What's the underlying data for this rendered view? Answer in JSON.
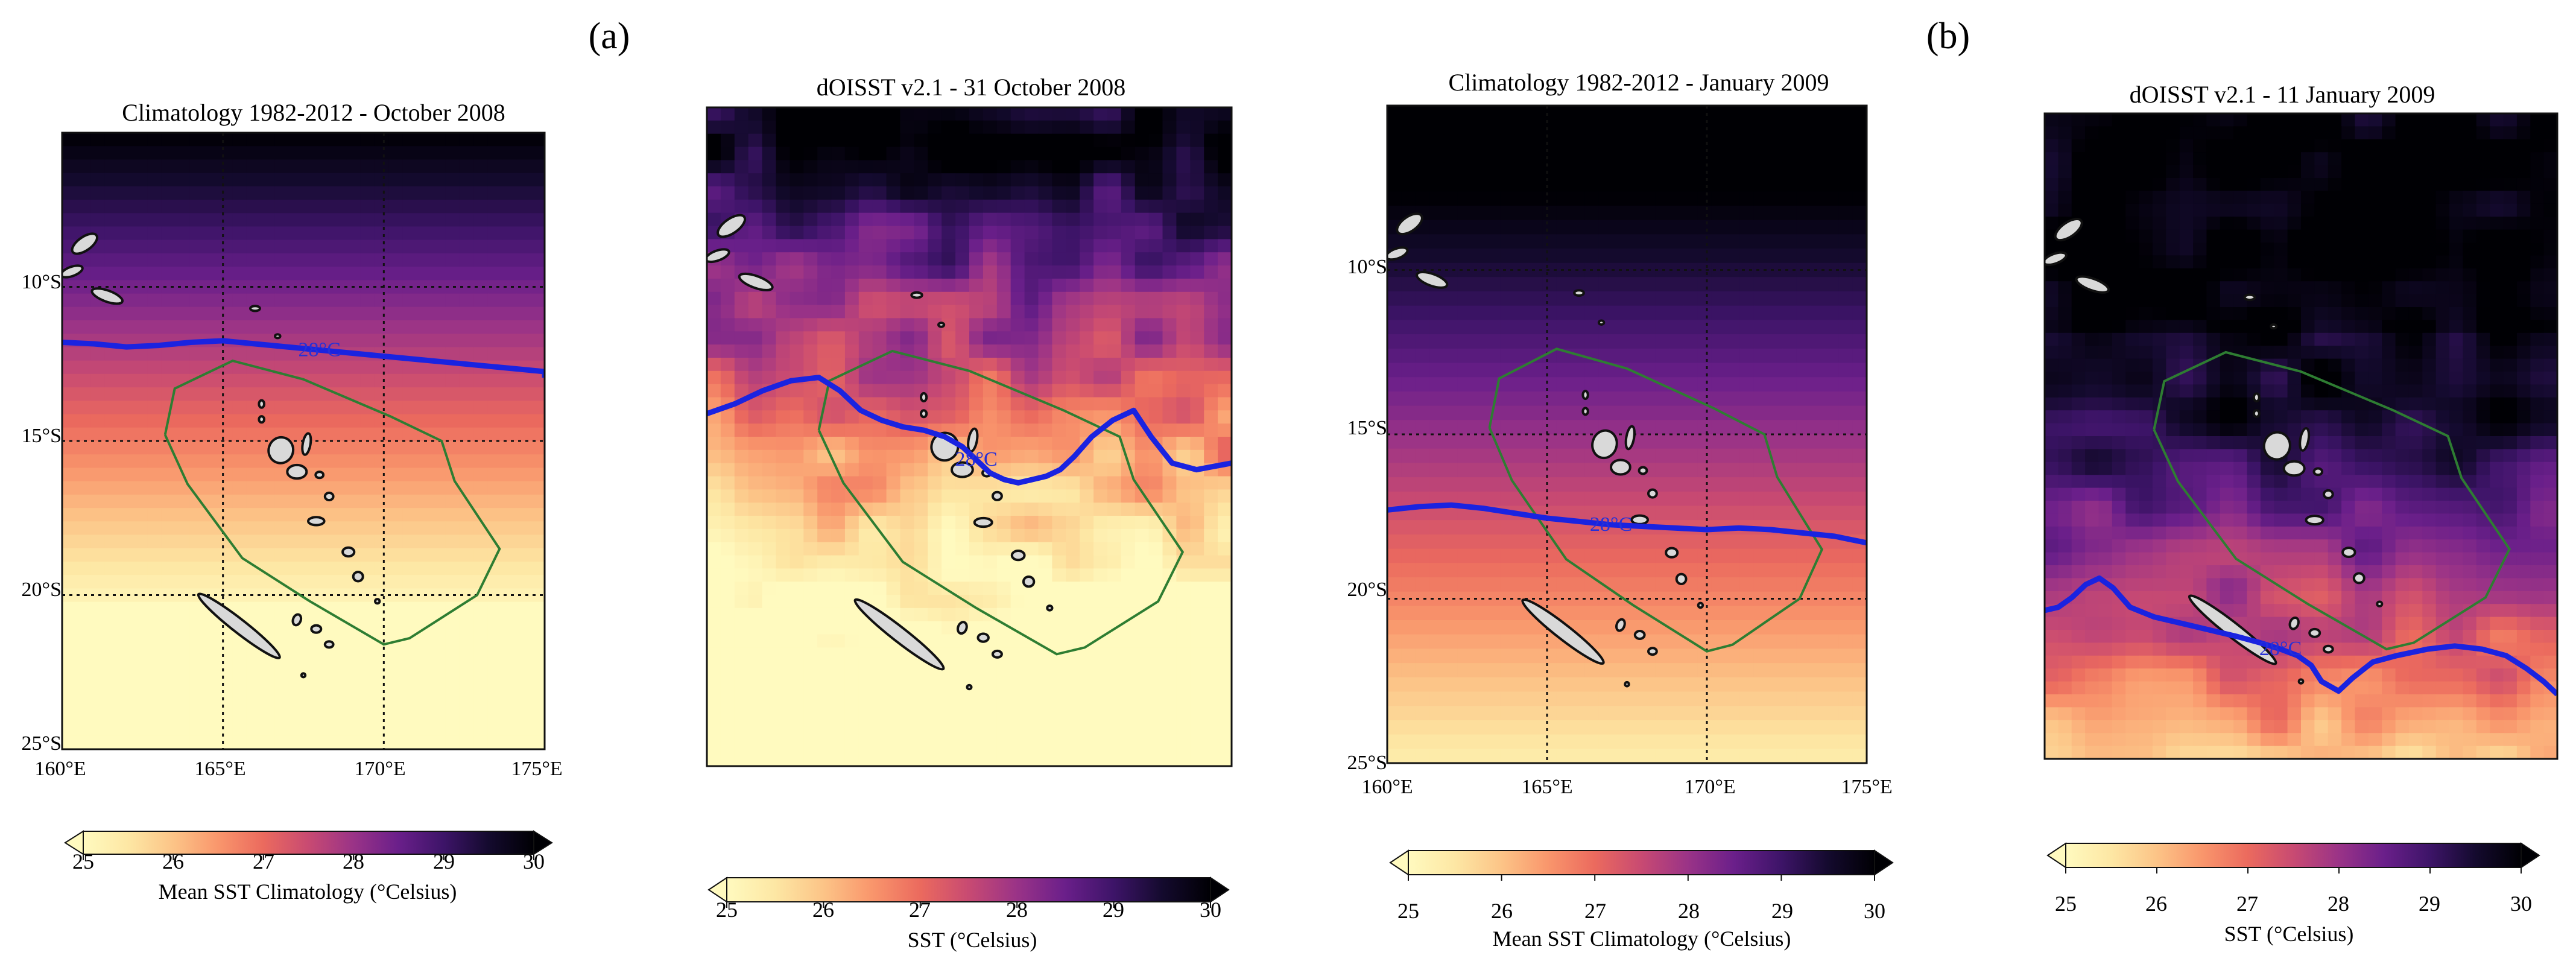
{
  "figure": {
    "panel_letters": [
      "(a)",
      "(b)"
    ],
    "colormap": [
      "#fffabf",
      "#fde7a4",
      "#fcc487",
      "#f9966c",
      "#eb6a5e",
      "#c84a72",
      "#9a3387",
      "#6a1f8a",
      "#3d1468",
      "#140a2e",
      "#000004"
    ]
  },
  "chart_data": [
    {
      "type": "heatmap",
      "title": "Climatology 1982-2012 - October 2008",
      "field": "climatology",
      "colorbar_label": "Mean SST Climatology (°Celsius)",
      "colorbar_ticks": [
        "25",
        "26",
        "27",
        "28",
        "29",
        "30"
      ],
      "value_range": [
        25,
        30
      ],
      "lon_range": [
        160,
        175
      ],
      "lat_range": [
        -25,
        -5
      ],
      "x_ticks": [
        "160°E",
        "165°E",
        "170°E",
        "175°E"
      ],
      "y_ticks": [
        "10°S",
        "15°S",
        "20°S",
        "25°S"
      ],
      "grid": true,
      "isotherm_label": "28°C",
      "isotherm_lat": [
        -11.8,
        -11.85,
        -11.95,
        -11.9,
        -11.8,
        -11.75,
        -11.85,
        -11.95,
        -12.05,
        -12.15,
        -12.25,
        -12.35,
        -12.45,
        -12.55,
        -12.65,
        -12.75,
        -12.85,
        -12.95
      ],
      "isotherm_lon": [
        160,
        161,
        162,
        163,
        164,
        165,
        166,
        167,
        168,
        169,
        170,
        171,
        172,
        173,
        174,
        175,
        175,
        175
      ]
    },
    {
      "type": "heatmap",
      "title": "dOISST v2.1 - 31 October 2008",
      "field": "daily",
      "colorbar_label": "SST (°Celsius)",
      "colorbar_ticks": [
        "25",
        "26",
        "27",
        "28",
        "29",
        "30"
      ],
      "value_range": [
        25,
        30
      ],
      "lon_range": [
        160,
        175
      ],
      "lat_range": [
        -25,
        -5
      ],
      "grid": false,
      "isotherm_label": "28°C",
      "isotherm_lat": [
        -14.3,
        -14.0,
        -13.6,
        -13.3,
        -13.2,
        -13.6,
        -14.2,
        -14.5,
        -14.7,
        -14.8,
        -15.0,
        -15.3,
        -15.7,
        -16.1,
        -16.3,
        -16.4,
        -16.3,
        -16.2,
        -16.0,
        -15.6,
        -15.0,
        -14.5,
        -14.2,
        -15.0,
        -15.8,
        -16.0,
        -15.9,
        -15.8
      ],
      "isotherm_lon": [
        160,
        160.8,
        161.6,
        162.4,
        163.2,
        163.8,
        164.4,
        165.0,
        165.6,
        166.2,
        166.8,
        167.3,
        167.7,
        168.1,
        168.5,
        168.9,
        169.3,
        169.7,
        170.1,
        170.5,
        171.0,
        171.6,
        172.2,
        172.7,
        173.3,
        174.0,
        174.5,
        175.0
      ]
    },
    {
      "type": "heatmap",
      "title": "Climatology 1982-2012 - January 2009",
      "field": "climatology",
      "colorbar_label": "Mean SST Climatology (°Celsius)",
      "colorbar_ticks": [
        "25",
        "26",
        "27",
        "28",
        "29",
        "30"
      ],
      "value_range": [
        25,
        30
      ],
      "lon_range": [
        160,
        175
      ],
      "lat_range": [
        -25,
        -5
      ],
      "x_ticks": [
        "160°E",
        "165°E",
        "170°E",
        "175°E"
      ],
      "y_ticks": [
        "10°S",
        "15°S",
        "20°S",
        "25°S"
      ],
      "grid": true,
      "isotherm_label": "28°C",
      "isotherm_lat": [
        -17.3,
        -17.2,
        -17.15,
        -17.25,
        -17.4,
        -17.55,
        -17.65,
        -17.75,
        -17.8,
        -17.85,
        -17.9,
        -17.85,
        -17.9,
        -18.0,
        -18.1,
        -18.3
      ],
      "isotherm_lon": [
        160,
        161,
        162,
        163,
        164,
        165,
        166,
        167,
        168,
        169,
        170,
        171,
        172,
        173,
        174,
        175
      ]
    },
    {
      "type": "heatmap",
      "title": "dOISST v2.1 - 11 January 2009",
      "field": "daily",
      "colorbar_label": "SST (°Celsius)",
      "colorbar_ticks": [
        "25",
        "26",
        "27",
        "28",
        "29",
        "30"
      ],
      "value_range": [
        25,
        30
      ],
      "lon_range": [
        160,
        175
      ],
      "lat_range": [
        -25,
        -5
      ],
      "grid": false,
      "isotherm_label": "28°C",
      "isotherm_lat": [
        -20.4,
        -20.3,
        -20.0,
        -19.6,
        -19.4,
        -19.7,
        -20.3,
        -20.6,
        -20.8,
        -21.0,
        -21.2,
        -21.4,
        -21.6,
        -21.8,
        -22.1,
        -22.6,
        -22.9,
        -22.5,
        -22.0,
        -21.8,
        -21.6,
        -21.5,
        -21.6,
        -21.8,
        -22.2,
        -22.6,
        -23.0
      ],
      "isotherm_lon": [
        160,
        160.4,
        160.8,
        161.2,
        161.6,
        162.0,
        162.5,
        163.2,
        164.0,
        164.8,
        165.6,
        166.3,
        166.9,
        167.4,
        167.8,
        168.1,
        168.6,
        169.0,
        169.6,
        170.3,
        171.2,
        172.0,
        172.8,
        173.5,
        174.1,
        174.6,
        175.0
      ]
    }
  ]
}
